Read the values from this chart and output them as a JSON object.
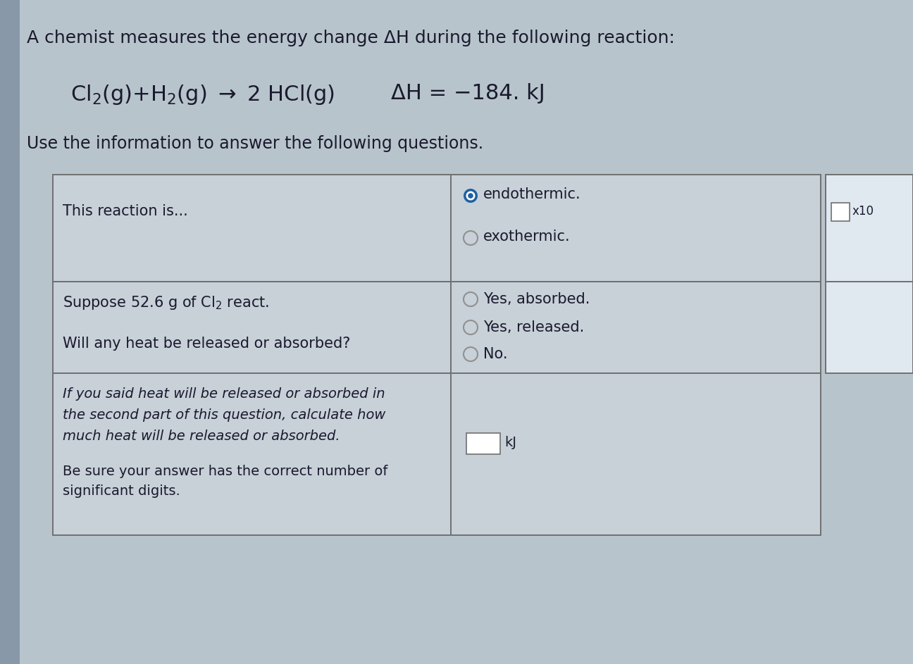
{
  "title_line": "A chemist measures the energy change ΔH during the following reaction:",
  "reaction_latex": "Cl$_2$(g)+H$_2$(g) → 2 HCl(g)",
  "delta_h": "ΔH = −184. kJ",
  "subtitle": "Use the information to answer the following questions.",
  "row1_left": "This reaction is...",
  "row1_right_options": [
    "endothermic.",
    "exothermic."
  ],
  "row2_left_a": "Suppose 52.6 g of Cl₂ react.",
  "row2_left_b": "Will any heat be released or absorbed?",
  "row2_right_options": [
    "Yes, absorbed.",
    "Yes, released.",
    "No."
  ],
  "row3_left_lines": [
    "If you said heat will be released or absorbed in",
    "the second part of this question, calculate how",
    "much heat will be released or absorbed."
  ],
  "row3_left_lines2": [
    "Be sure your answer has the correct number of",
    "significant digits."
  ],
  "row3_right": "kJ",
  "bg_color": "#b8c4cc",
  "table_bg": "#c8d0d8",
  "table_border": "#707070",
  "text_color": "#1a1a2e",
  "selected_radio_outer": "#2060a0",
  "selected_radio_inner": "#2060a0",
  "unselected_radio_color": "#909090",
  "right_panel_bg": "#e0e8f0",
  "figw": 12.96,
  "figh": 9.43
}
